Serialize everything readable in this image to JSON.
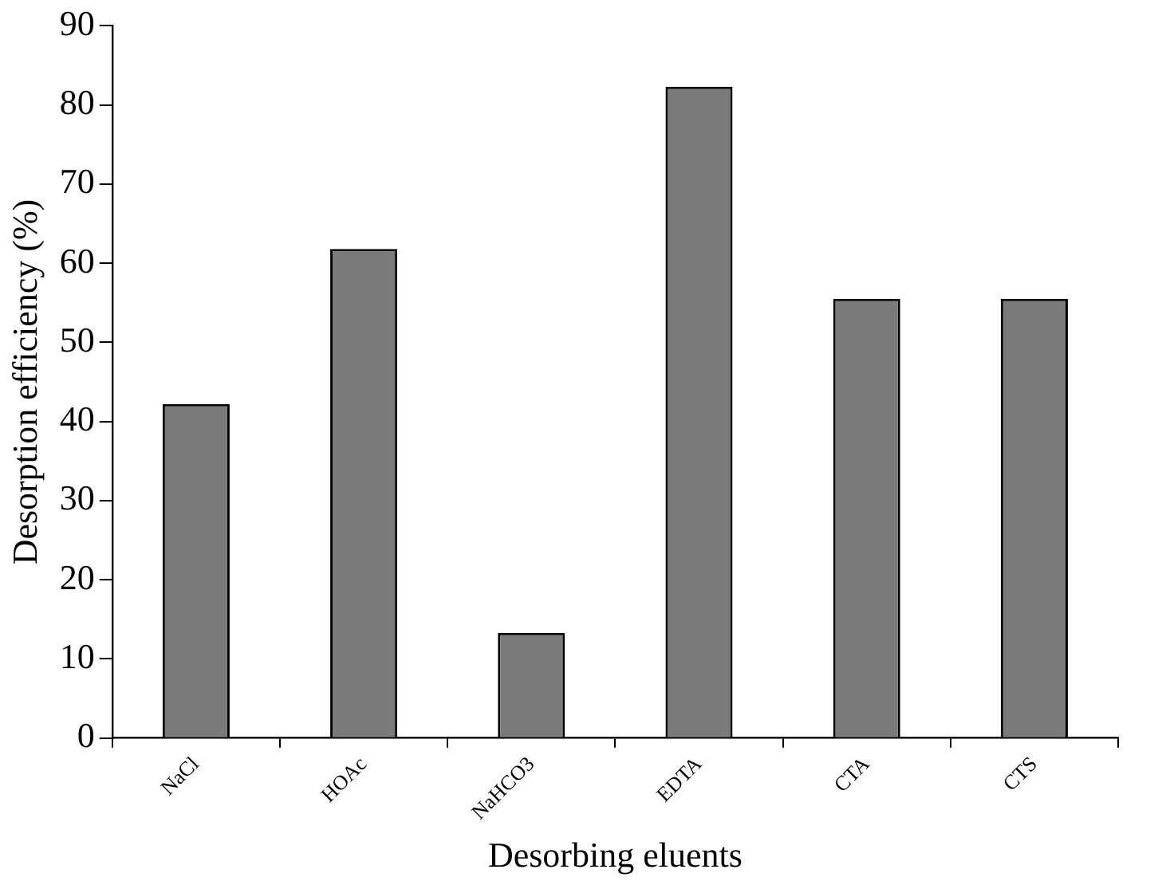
{
  "chart_data": {
    "type": "bar",
    "xlabel": "Desorbing eluents",
    "ylabel": "Desorption efficiency (%)",
    "categories": [
      "NaCl",
      "HOAc",
      "NaHCO3",
      "EDTA",
      "CTA",
      "CTS"
    ],
    "values": [
      42.2,
      61.8,
      13.3,
      82.3,
      55.5,
      55.5
    ],
    "color": "#7a7a7a",
    "ylim": [
      0,
      90
    ],
    "yticks": [
      0,
      10,
      20,
      30,
      40,
      50,
      60,
      70,
      80,
      90
    ],
    "grid": false,
    "legend": false
  }
}
